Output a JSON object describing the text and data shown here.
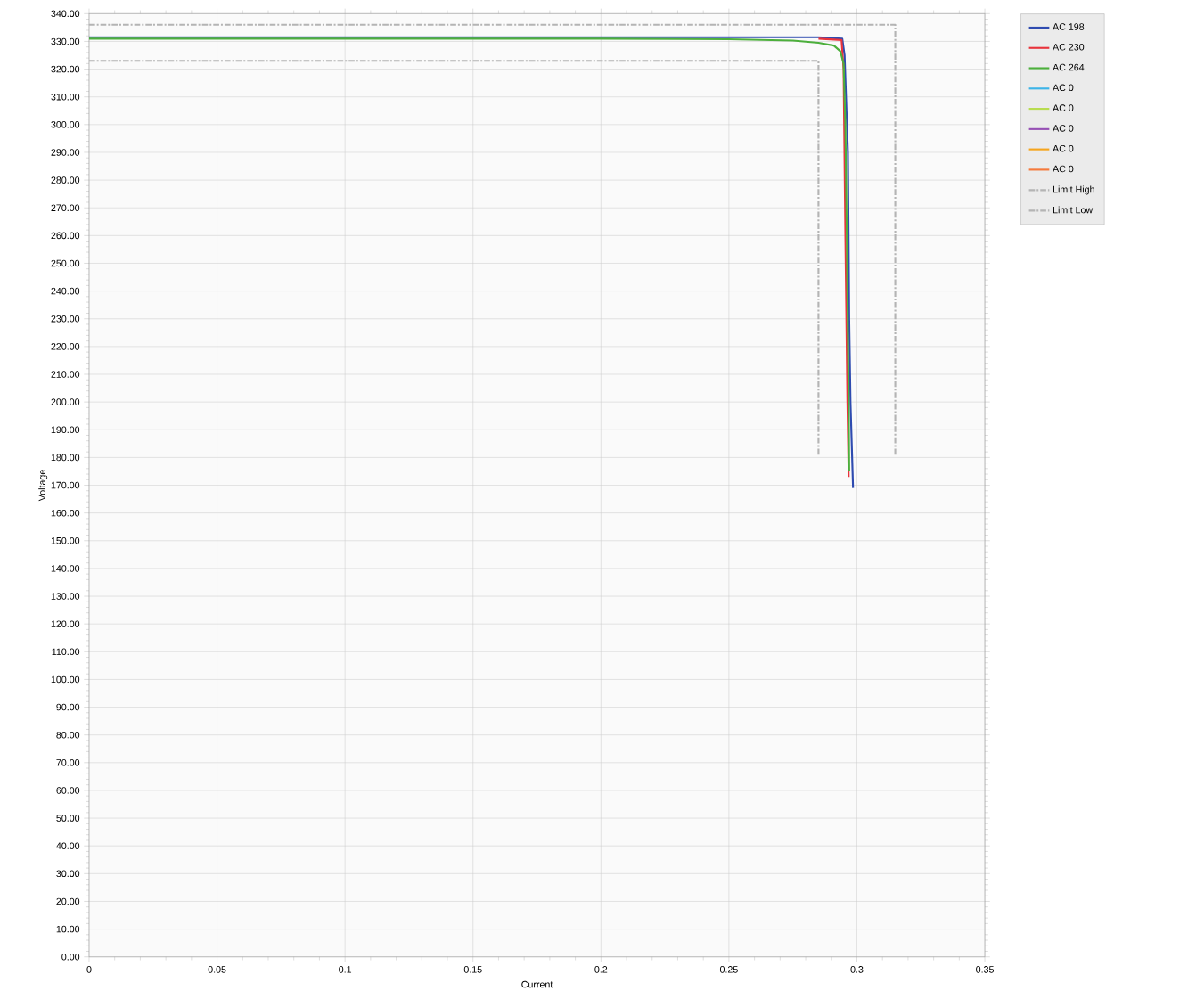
{
  "chart_data": {
    "type": "line",
    "xlabel": "Current",
    "ylabel": "Voltage",
    "xlim": [
      0,
      0.35
    ],
    "ylim": [
      0,
      340
    ],
    "xticks": [
      0,
      0.05,
      0.1,
      0.15,
      0.2,
      0.25,
      0.3,
      0.35
    ],
    "yticks": [
      {
        "value": 0,
        "label": "0.00"
      },
      {
        "value": 10,
        "label": "10.00"
      },
      {
        "value": 20,
        "label": "20.00"
      },
      {
        "value": 30,
        "label": "30.00"
      },
      {
        "value": 40,
        "label": "40.00"
      },
      {
        "value": 50,
        "label": "50.00"
      },
      {
        "value": 60,
        "label": "60.00"
      },
      {
        "value": 70,
        "label": "70.00"
      },
      {
        "value": 80,
        "label": "80.00"
      },
      {
        "value": 90,
        "label": "90.00"
      },
      {
        "value": 100,
        "label": "100.00"
      },
      {
        "value": 110,
        "label": "110.00"
      },
      {
        "value": 120,
        "label": "120.00"
      },
      {
        "value": 130,
        "label": "130.00"
      },
      {
        "value": 140,
        "label": "140.00"
      },
      {
        "value": 150,
        "label": "150.00"
      },
      {
        "value": 160,
        "label": "160.00"
      },
      {
        "value": 170,
        "label": "170.00"
      },
      {
        "value": 180,
        "label": "180.00"
      },
      {
        "value": 190,
        "label": "190.00"
      },
      {
        "value": 200,
        "label": "200.00"
      },
      {
        "value": 210,
        "label": "210.00"
      },
      {
        "value": 220,
        "label": "220.00"
      },
      {
        "value": 230,
        "label": "230.00"
      },
      {
        "value": 240,
        "label": "240.00"
      },
      {
        "value": 250,
        "label": "250.00"
      },
      {
        "value": 260,
        "label": "260.00"
      },
      {
        "value": 270,
        "label": "270.00"
      },
      {
        "value": 280,
        "label": "280.00"
      },
      {
        "value": 290,
        "label": "290.00"
      },
      {
        "value": 300,
        "label": "300.00"
      },
      {
        "value": 310,
        "label": "310.00"
      },
      {
        "value": 320,
        "label": "320.00"
      },
      {
        "value": 330,
        "label": "330.00"
      },
      {
        "value": 340,
        "label": "340.00"
      }
    ],
    "grid": true,
    "legend": "top right",
    "marker": "none",
    "series": [
      {
        "name": "AC 198",
        "color": "#2e4bb0",
        "x": [
          0,
          0.1,
          0.2,
          0.285,
          0.2943,
          0.2952,
          0.2965,
          0.297,
          0.2975,
          0.2985
        ],
        "values": [
          331.5,
          331.5,
          331.5,
          331.5,
          331,
          325,
          290,
          230,
          200,
          169
        ]
      },
      {
        "name": "AC 230",
        "color": "#e8343c",
        "x": [
          0.285,
          0.294,
          0.2948,
          0.2955,
          0.2963,
          0.2968
        ],
        "values": [
          331,
          330.5,
          320,
          260,
          200,
          173
        ]
      },
      {
        "name": "AC 264",
        "color": "#4caf3c",
        "x": [
          0,
          0.1,
          0.2,
          0.25,
          0.275,
          0.285,
          0.291,
          0.2935,
          0.2948,
          0.2955,
          0.296,
          0.2968,
          0.297
        ],
        "values": [
          331,
          331,
          331,
          330.8,
          330.3,
          329.5,
          328.5,
          326.5,
          322,
          300,
          265,
          200,
          175
        ]
      },
      {
        "name": "AC 0",
        "color": "#3cb4e8"
      },
      {
        "name": "AC 0",
        "color": "#b8dc50"
      },
      {
        "name": "AC 0",
        "color": "#9650b4"
      },
      {
        "name": "AC 0",
        "color": "#f5a51e"
      },
      {
        "name": "AC 0",
        "color": "#f57a3c"
      },
      {
        "name": "Limit High",
        "color": "#b4b4b4",
        "line_style": "dashed",
        "x": [
          0,
          0.315,
          0.315
        ],
        "values": [
          336,
          336,
          181
        ]
      },
      {
        "name": "Limit Low",
        "color": "#b4b4b4",
        "line_style": "dashed",
        "x": [
          0,
          0.285,
          0.285
        ],
        "values": [
          323,
          323,
          181
        ]
      }
    ]
  }
}
